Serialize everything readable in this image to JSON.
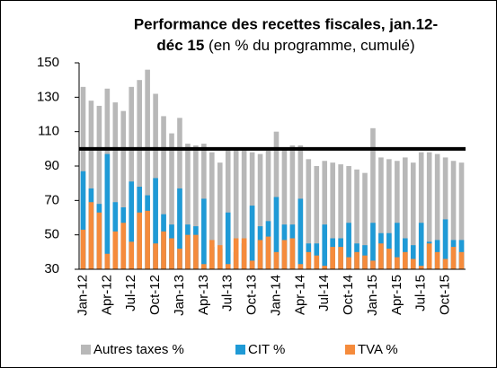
{
  "chart_data": {
    "type": "bar",
    "title": [
      "Performance des recettes fiscales, jan.12-",
      "déc 15"
    ],
    "subtitle": "(en % du programme, cumulé)",
    "categories": [
      "Jan-12",
      null,
      null,
      "Apr-12",
      null,
      null,
      "Jul-12",
      null,
      null,
      "Oct-12",
      null,
      null,
      "Jan-13",
      null,
      null,
      "Apr-13",
      null,
      null,
      "Jul-13",
      null,
      null,
      "Oct-13",
      null,
      null,
      "Jan-14",
      null,
      null,
      "Apr-14",
      null,
      null,
      "Jul-14",
      null,
      null,
      "Oct-14",
      null,
      null,
      "Jan-15",
      null,
      null,
      "Apr-15",
      null,
      null,
      "Jul-15",
      null,
      null,
      "Oct-15",
      null,
      null
    ],
    "series": [
      {
        "name": "Autres taxes %",
        "color": "#b8b8b8",
        "values": [
          136,
          128,
          125,
          135,
          127,
          122,
          136,
          140,
          146,
          132,
          119,
          109,
          118,
          103,
          102,
          103,
          98,
          92,
          100,
          100,
          99,
          98,
          97,
          99,
          110,
          100,
          102,
          102,
          94,
          90,
          93,
          92,
          91,
          90,
          88,
          86,
          112,
          95,
          94,
          93,
          95,
          92,
          98,
          98,
          97,
          95,
          93,
          92
        ]
      },
      {
        "name": "CIT %",
        "color": "#1f9ad6",
        "values": [
          87,
          77,
          68,
          97,
          69,
          66,
          81,
          78,
          73,
          83,
          62,
          56,
          77,
          56,
          55,
          71,
          43,
          42,
          63,
          40,
          45,
          67,
          55,
          58,
          72,
          56,
          56,
          71,
          45,
          45,
          56,
          48,
          48,
          57,
          45,
          44,
          57,
          51,
          51,
          57,
          48,
          44,
          57,
          46,
          47,
          59,
          47,
          47
        ]
      },
      {
        "name": "TVA %",
        "color": "#f58b3c",
        "values": [
          53,
          69,
          63,
          39,
          52,
          57,
          46,
          63,
          64,
          45,
          52,
          48,
          42,
          50,
          50,
          33,
          47,
          44,
          33,
          48,
          48,
          35,
          47,
          49,
          40,
          47,
          48,
          33,
          40,
          38,
          32,
          43,
          43,
          37,
          40,
          38,
          35,
          45,
          42,
          37,
          40,
          36,
          32,
          45,
          40,
          36,
          43,
          40
        ]
      }
    ],
    "ylim": [
      30,
      150
    ],
    "yticks": [
      30,
      50,
      70,
      90,
      110,
      130,
      150
    ],
    "reference_line": 100,
    "reference_color": "#000000",
    "title_color": "#1b8ec9",
    "legend": "bottom"
  }
}
